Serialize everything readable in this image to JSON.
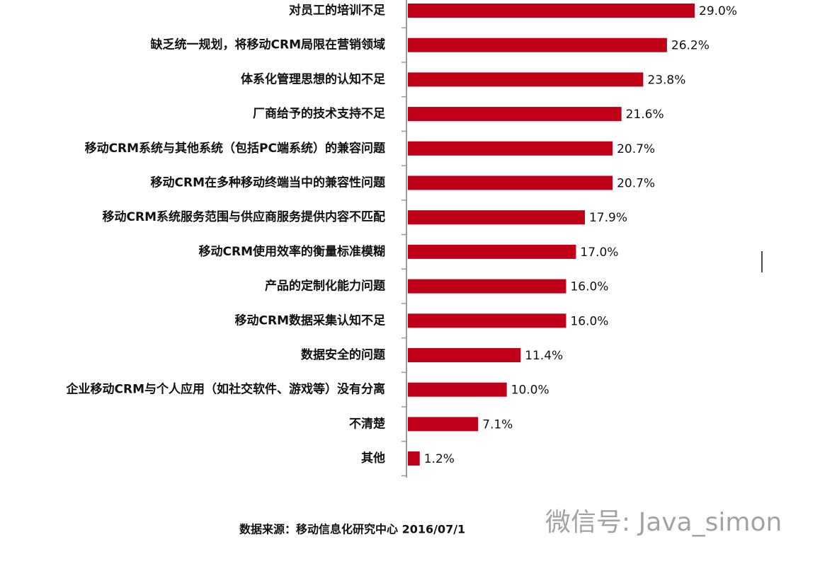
{
  "chart_data": {
    "type": "bar",
    "orientation": "horizontal",
    "color": "#c00018",
    "categories": [
      "对员工的培训不足",
      "缺乏统一规划，将移动CRM局限在营销领域",
      "体系化管理思想的认知不足",
      "厂商给予的技术支持不足",
      "移动CRM系统与其他系统（包括PC端系统）的兼容问题",
      "移动CRM在多种移动终端当中的兼容性问题",
      "移动CRM系统服务范围与供应商服务提供内容不匹配",
      "移动CRM使用效率的衡量标准模糊",
      "产品的定制化能力问题",
      "移动CRM数据采集认知不足",
      "数据安全的问题",
      "企业移动CRM与个人应用（如社交软件、游戏等）没有分离",
      "不清楚",
      "其他"
    ],
    "values": [
      29.0,
      26.2,
      23.8,
      21.6,
      20.7,
      20.7,
      17.9,
      17.0,
      16.0,
      16.0,
      11.4,
      10.0,
      7.1,
      1.2
    ],
    "value_labels": [
      "29.0%",
      "26.2%",
      "23.8%",
      "21.6%",
      "20.7%",
      "20.7%",
      "17.9%",
      "17.0%",
      "16.0%",
      "16.0%",
      "11.4%",
      "10.0%",
      "7.1%",
      "1.2%"
    ],
    "source": "数据来源：移动信息化研究中心 2016/07/1",
    "watermark": "微信号: Java_simon"
  }
}
